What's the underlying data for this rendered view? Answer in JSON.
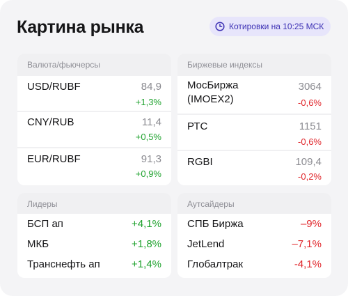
{
  "title": "Картина рынка",
  "quote_badge": {
    "icon": "clock-icon",
    "label": "Котировки на 10:25 МСК"
  },
  "colors": {
    "positive": "#1fa22e",
    "negative": "#e0252a",
    "accent": "#3b2fb4"
  },
  "currency": {
    "header": "Валюта/фьючерсы",
    "rows": [
      {
        "name": "USD/RUBF",
        "price": "84,9",
        "change": "+1,3%"
      },
      {
        "name": "CNY/RUB",
        "price": "11,4",
        "change": "+0,5%"
      },
      {
        "name": "EUR/RUBF",
        "price": "91,3",
        "change": "+0,9%"
      }
    ]
  },
  "indices": {
    "header": "Биржевые индексы",
    "rows": [
      {
        "name_line1": "МосБиржа",
        "name_line2": "(IMOEX2)",
        "price": "3064",
        "change": "-0,6%"
      },
      {
        "name": "РТС",
        "price": "1151",
        "change": "-0,6%"
      },
      {
        "name": "RGBI",
        "price": "109,4",
        "change": "-0,2%"
      }
    ]
  },
  "leaders": {
    "header": "Лидеры",
    "rows": [
      {
        "name": "БСП ап",
        "change": "+4,1%"
      },
      {
        "name": "МКБ",
        "change": "+1,8%"
      },
      {
        "name": "Транснефть ап",
        "change": "+1,4%"
      }
    ]
  },
  "outsiders": {
    "header": "Аутсайдеры",
    "rows": [
      {
        "name": "СПБ Биржа",
        "change": "–9%"
      },
      {
        "name": "JetLend",
        "change": "–7,1%"
      },
      {
        "name": "Глобалтрак",
        "change": "-4,1%"
      }
    ]
  }
}
